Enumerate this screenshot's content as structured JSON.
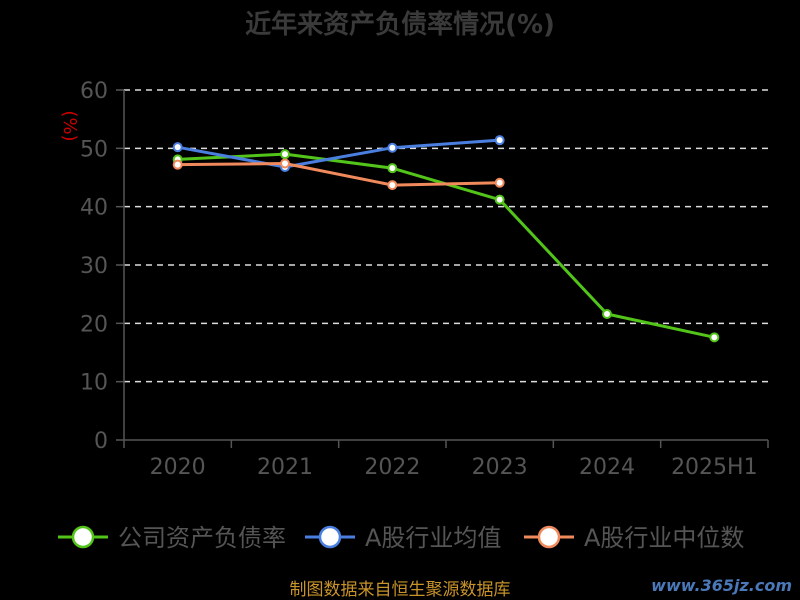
{
  "chart_data": {
    "type": "line",
    "title": "近年来资产负债率情况(%)",
    "ylabel": "(%)",
    "categories": [
      "2020",
      "2021",
      "2022",
      "2023",
      "2024",
      "2025H1"
    ],
    "ylim": [
      0,
      60
    ],
    "yticks": [
      0,
      10,
      20,
      30,
      40,
      50,
      60
    ],
    "grid": true,
    "legend_position": "bottom",
    "series": [
      {
        "name": "公司资产负债率",
        "color": "#52c41a",
        "values": [
          48.1,
          49.0,
          46.6,
          41.2,
          21.6,
          17.6
        ]
      },
      {
        "name": "A股行业均值",
        "color": "#4a7fe0",
        "values": [
          50.2,
          46.8,
          50.1,
          51.4,
          null,
          null
        ]
      },
      {
        "name": "A股行业中位数",
        "color": "#f08a5d",
        "values": [
          47.2,
          47.4,
          43.7,
          44.1,
          null,
          null
        ]
      }
    ]
  },
  "footer": {
    "source": "制图数据来自恒生聚源数据库",
    "watermark": "www.365jz.com"
  }
}
